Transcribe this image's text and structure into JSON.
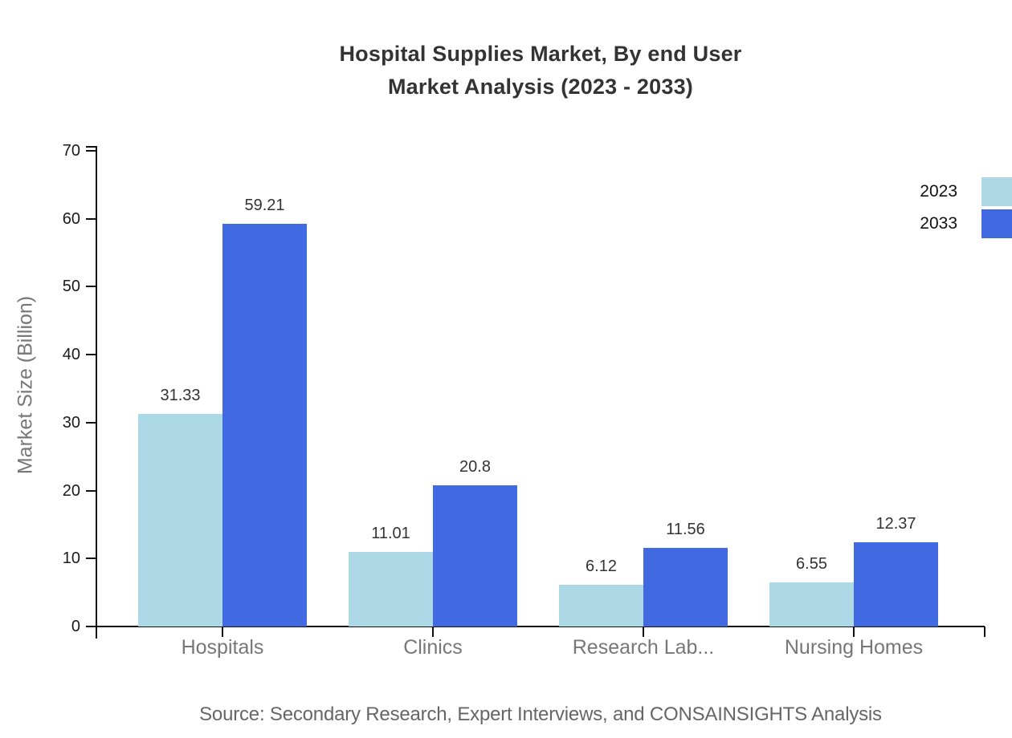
{
  "page": {
    "background": "#ffffff"
  },
  "source": {
    "text": "Source: Secondary Research, Expert Interviews, and CONSAINSIGHTS Analysis"
  },
  "chart_data": {
    "type": "bar",
    "title": "Hospital Supplies Market, By end User\nMarket Analysis (2023 - 2033)",
    "xlabel": "",
    "ylabel": "Market Size (Billion)",
    "categories": [
      "Hospitals",
      "Clinics",
      "Research Lab...",
      "Nursing Homes"
    ],
    "series": [
      {
        "name": "2023",
        "color": "#ADD8E6",
        "values": [
          31.33,
          11.01,
          6.12,
          6.55
        ]
      },
      {
        "name": "2033",
        "color": "#4169E1",
        "values": [
          59.21,
          20.8,
          11.56,
          12.37
        ]
      }
    ],
    "ylim": [
      0,
      70
    ],
    "ytick_step": 10,
    "grid": false,
    "legend_position": "top-right",
    "colors": {
      "title": "#333333",
      "axis": "#111111",
      "ytick_label": "#1a1a1a",
      "category_label": "#777777",
      "value_label": "#333333",
      "source": "#666666"
    }
  }
}
